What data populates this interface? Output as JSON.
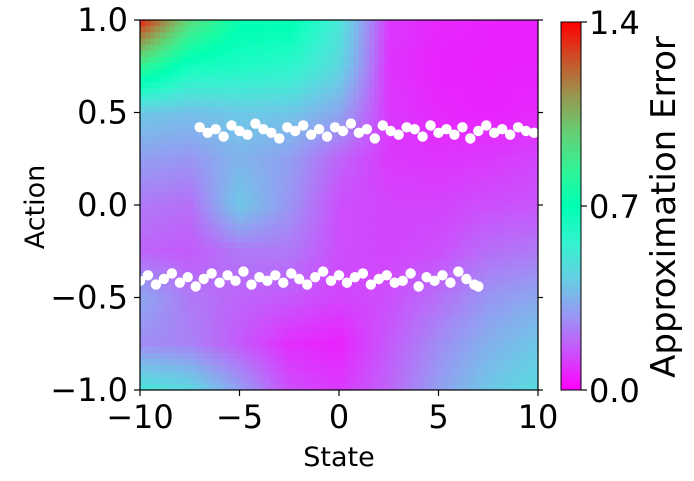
{
  "chart_data": {
    "type": "heatmap",
    "xlabel": "State",
    "ylabel": "Action",
    "xlim": [
      -10,
      10
    ],
    "ylim": [
      -1,
      1
    ],
    "x_ticks": [
      -10,
      -5,
      0,
      5,
      10
    ],
    "x_tick_labels": [
      "−10",
      "−5",
      "0",
      "5",
      "10"
    ],
    "y_ticks": [
      -1.0,
      -0.5,
      0.0,
      0.5,
      1.0
    ],
    "y_tick_labels": [
      "−1.0",
      "−0.5",
      "0.0",
      "0.5",
      "1.0"
    ],
    "colormap": "rainbow",
    "colorbar": {
      "label": "Approximation Error",
      "range": [
        0.0,
        1.4
      ],
      "ticks": [
        0.0,
        0.7,
        1.4
      ],
      "tick_labels": [
        "0.0",
        "0.7",
        "1.4"
      ]
    },
    "error_field": {
      "x": [
        -10,
        -7.5,
        -5,
        -2.5,
        0,
        2.5,
        5,
        7.5,
        10
      ],
      "y": [
        1.0,
        0.75,
        0.5,
        0.25,
        0.0,
        -0.25,
        -0.5,
        -0.75,
        -1.0
      ],
      "values": [
        [
          1.35,
          0.95,
          0.72,
          0.72,
          0.5,
          0.1,
          0.07,
          0.06,
          0.06
        ],
        [
          0.85,
          0.65,
          0.62,
          0.58,
          0.45,
          0.09,
          0.06,
          0.06,
          0.06
        ],
        [
          0.4,
          0.38,
          0.4,
          0.4,
          0.32,
          0.1,
          0.07,
          0.06,
          0.07
        ],
        [
          0.3,
          0.28,
          0.35,
          0.3,
          0.18,
          0.1,
          0.09,
          0.1,
          0.12
        ],
        [
          0.22,
          0.2,
          0.4,
          0.28,
          0.14,
          0.12,
          0.12,
          0.14,
          0.15
        ],
        [
          0.18,
          0.16,
          0.22,
          0.22,
          0.14,
          0.12,
          0.14,
          0.2,
          0.22
        ],
        [
          0.32,
          0.22,
          0.18,
          0.16,
          0.12,
          0.14,
          0.2,
          0.28,
          0.32
        ],
        [
          0.26,
          0.24,
          0.16,
          0.08,
          0.06,
          0.16,
          0.26,
          0.34,
          0.4
        ],
        [
          0.5,
          0.45,
          0.3,
          0.14,
          0.1,
          0.18,
          0.3,
          0.4,
          0.46
        ]
      ]
    },
    "series": [
      {
        "marker": "circle",
        "color": "#ffffff",
        "x": [
          -7,
          -6.6,
          -6.2,
          -5.8,
          -5.4,
          -5,
          -4.6,
          -4.2,
          -3.8,
          -3.4,
          -3,
          -2.6,
          -2.2,
          -1.8,
          -1.4,
          -1,
          -0.6,
          -0.2,
          0.2,
          0.6,
          1,
          1.4,
          1.8,
          2.2,
          2.6,
          3,
          3.4,
          3.8,
          4.2,
          4.6,
          5,
          5.4,
          5.8,
          6.2,
          6.6,
          7,
          7.4,
          7.8,
          8.2,
          8.6,
          9,
          9.4,
          9.8
        ],
        "y": [
          0.42,
          0.39,
          0.41,
          0.37,
          0.43,
          0.4,
          0.38,
          0.44,
          0.41,
          0.39,
          0.36,
          0.42,
          0.4,
          0.43,
          0.38,
          0.41,
          0.37,
          0.42,
          0.4,
          0.44,
          0.39,
          0.41,
          0.36,
          0.43,
          0.4,
          0.38,
          0.42,
          0.41,
          0.37,
          0.43,
          0.39,
          0.41,
          0.38,
          0.42,
          0.36,
          0.4,
          0.43,
          0.39,
          0.41,
          0.38,
          0.42,
          0.4,
          0.39
        ]
      },
      {
        "marker": "circle",
        "color": "#ffffff",
        "x": [
          -10,
          -9.6,
          -9.2,
          -8.8,
          -8.4,
          -8,
          -7.6,
          -7.2,
          -6.8,
          -6.4,
          -6,
          -5.6,
          -5.2,
          -4.8,
          -4.4,
          -4,
          -3.6,
          -3.2,
          -2.8,
          -2.4,
          -2,
          -1.6,
          -1.2,
          -0.8,
          -0.4,
          0,
          0.4,
          0.8,
          1.2,
          1.6,
          2,
          2.4,
          2.8,
          3.2,
          3.6,
          4,
          4.4,
          4.8,
          5.2,
          5.6,
          6,
          6.4,
          6.8,
          7
        ],
        "y": [
          -0.41,
          -0.38,
          -0.43,
          -0.4,
          -0.37,
          -0.42,
          -0.39,
          -0.44,
          -0.4,
          -0.37,
          -0.42,
          -0.38,
          -0.41,
          -0.36,
          -0.43,
          -0.39,
          -0.41,
          -0.38,
          -0.42,
          -0.37,
          -0.4,
          -0.43,
          -0.39,
          -0.36,
          -0.41,
          -0.38,
          -0.42,
          -0.39,
          -0.37,
          -0.43,
          -0.4,
          -0.38,
          -0.42,
          -0.41,
          -0.37,
          -0.44,
          -0.39,
          -0.41,
          -0.38,
          -0.42,
          -0.36,
          -0.4,
          -0.43,
          -0.44
        ]
      }
    ]
  }
}
